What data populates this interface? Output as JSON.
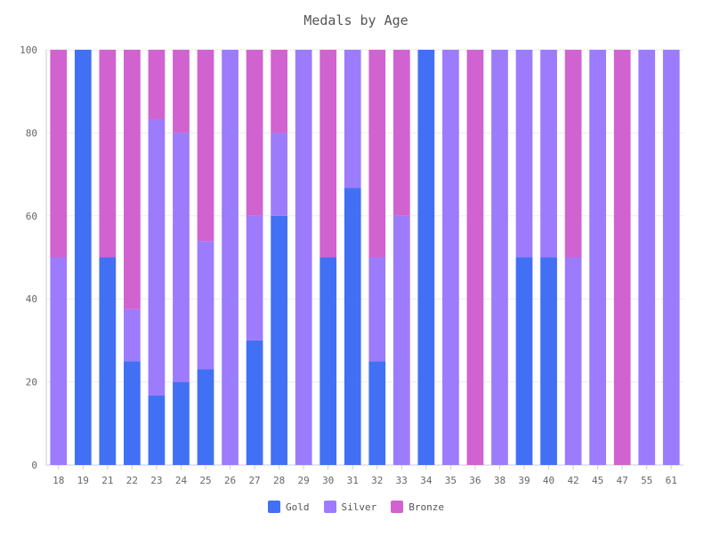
{
  "chart_data": {
    "type": "bar",
    "stacked": true,
    "title": "Medals by Age",
    "xlabel": "",
    "ylabel": "",
    "ylim": [
      0,
      100
    ],
    "yticks": [
      0,
      20,
      40,
      60,
      80,
      100
    ],
    "grid": true,
    "legend_position": "bottom",
    "categories": [
      "18",
      "19",
      "21",
      "22",
      "23",
      "24",
      "25",
      "26",
      "27",
      "28",
      "29",
      "30",
      "31",
      "32",
      "33",
      "34",
      "35",
      "36",
      "38",
      "39",
      "40",
      "42",
      "45",
      "47",
      "55",
      "61"
    ],
    "series": [
      {
        "name": "Gold",
        "color": "#4270f4",
        "values": [
          0,
          100,
          50,
          25,
          16.7,
          20,
          23.1,
          0,
          30,
          60,
          0,
          50,
          66.7,
          25,
          0,
          100,
          0,
          0,
          0,
          50,
          50,
          0,
          0,
          0,
          0,
          0
        ]
      },
      {
        "name": "Silver",
        "color": "#9c7cfc",
        "values": [
          50,
          0,
          0,
          12.5,
          66.6,
          60,
          30.8,
          100,
          30,
          20,
          100,
          0,
          33.3,
          25,
          60,
          0,
          100,
          0,
          100,
          50,
          50,
          50,
          100,
          0,
          100,
          100
        ]
      },
      {
        "name": "Bronze",
        "color": "#d063d0",
        "values": [
          50,
          0,
          50,
          62.5,
          16.7,
          20,
          46.1,
          0,
          40,
          20,
          0,
          50,
          0,
          50,
          40,
          0,
          0,
          100,
          0,
          0,
          0,
          50,
          0,
          100,
          0,
          0
        ]
      }
    ]
  }
}
